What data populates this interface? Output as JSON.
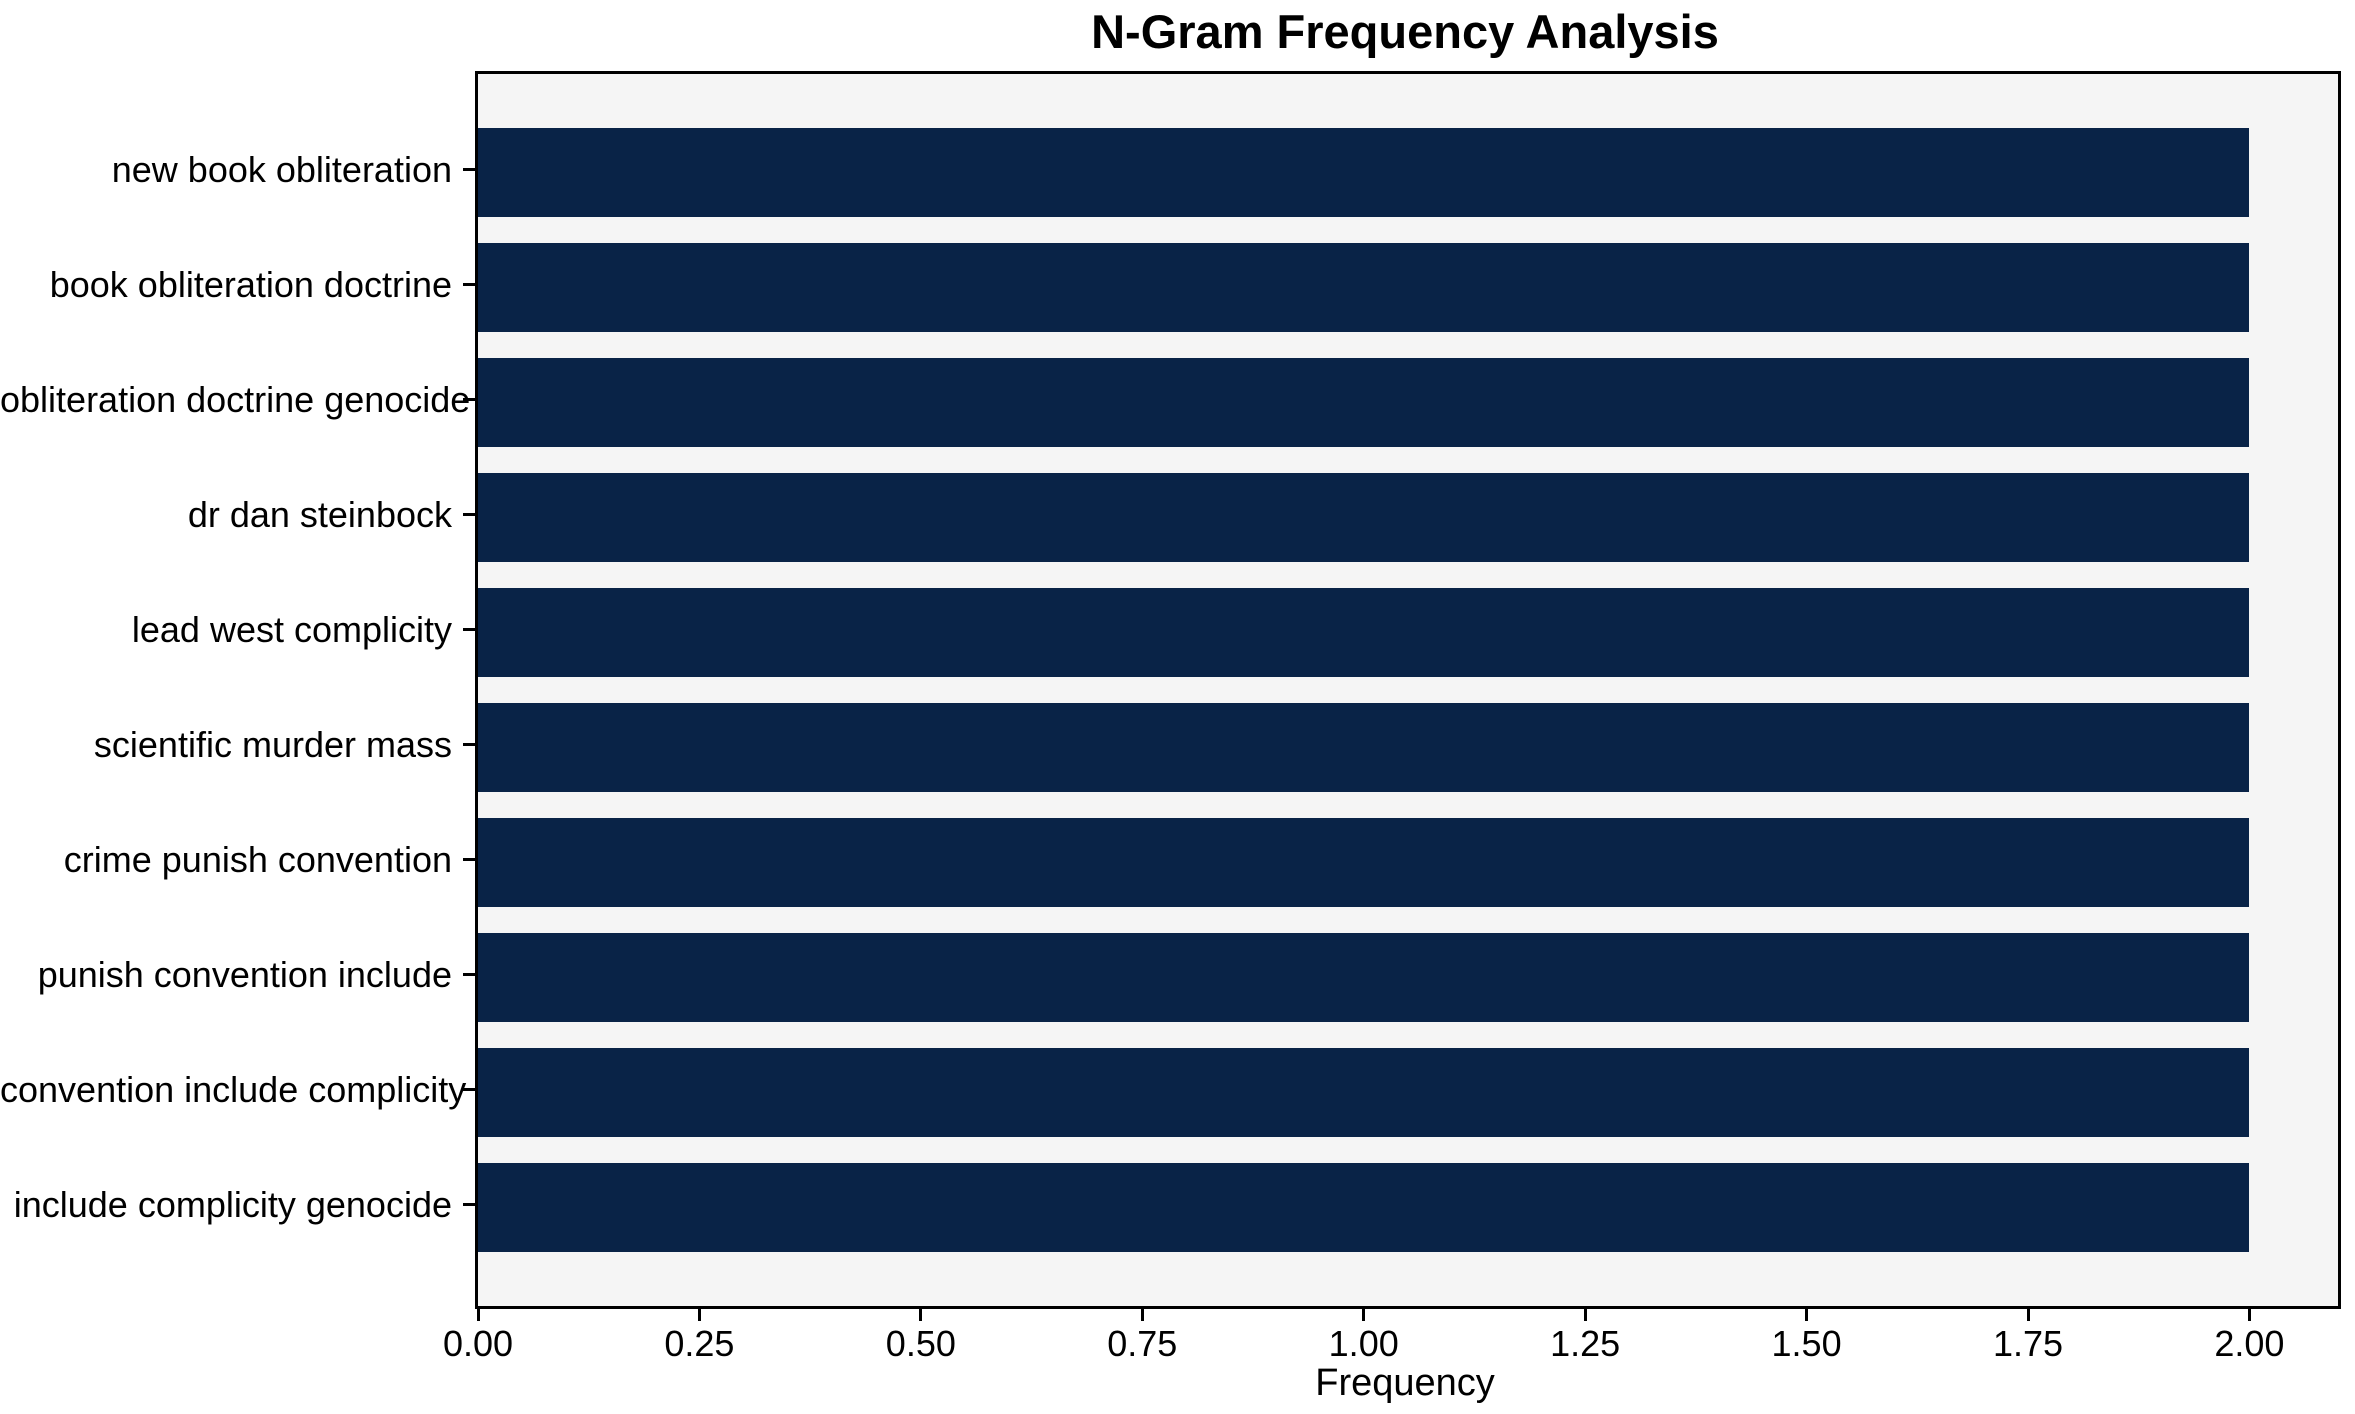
{
  "chart": {
    "title": "N-Gram Frequency Analysis",
    "xlabel": "Frequency"
  },
  "chart_data": {
    "type": "bar",
    "orientation": "horizontal",
    "title": "N-Gram Frequency Analysis",
    "xlabel": "Frequency",
    "ylabel": "",
    "categories": [
      "new book obliteration",
      "book obliteration doctrine",
      "obliteration doctrine genocide",
      "dr dan steinbock",
      "lead west complicity",
      "scientific murder mass",
      "crime punish convention",
      "punish convention include",
      "convention include complicity",
      "include complicity genocide"
    ],
    "values": [
      2,
      2,
      2,
      2,
      2,
      2,
      2,
      2,
      2,
      2
    ],
    "xlim": [
      0,
      2.1
    ],
    "xticks": [
      0.0,
      0.25,
      0.5,
      0.75,
      1.0,
      1.25,
      1.5,
      1.75,
      2.0
    ],
    "xtick_labels": [
      "0.00",
      "0.25",
      "0.50",
      "0.75",
      "1.00",
      "1.25",
      "1.50",
      "1.75",
      "2.00"
    ],
    "grid": false,
    "legend": null,
    "colors": {
      "bar": "#092347",
      "plot_background": "#f5f5f5",
      "figure_background": "#ffffff",
      "spine": "#000000",
      "text": "#000000"
    }
  }
}
